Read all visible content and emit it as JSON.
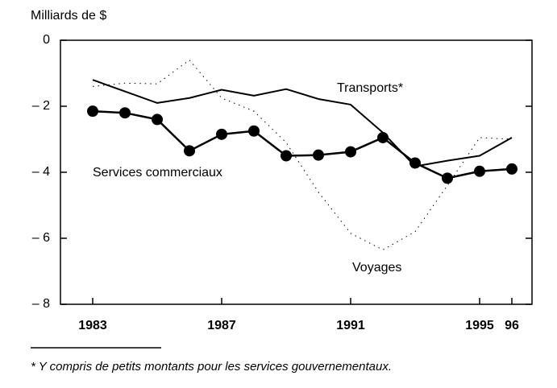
{
  "chart_data": {
    "type": "line",
    "y_axis_label": "Milliards de $",
    "footnote": "* Y compris de petits montants pour les services gouvernementaux.",
    "x": [
      1983,
      1984,
      1985,
      1986,
      1987,
      1988,
      1989,
      1990,
      1991,
      1992,
      1993,
      1994,
      1995,
      1996
    ],
    "xlim": [
      1982,
      1996.625
    ],
    "xticks": [
      1983,
      1987,
      1991,
      1995,
      {
        "value": 1996,
        "label": "96"
      }
    ],
    "ylim": [
      -8,
      0
    ],
    "yticks": [
      0,
      {
        "value": -2,
        "label": "– 2"
      },
      {
        "value": -4,
        "label": "– 4"
      },
      {
        "value": -6,
        "label": "– 6"
      },
      {
        "value": -8,
        "label": "– 8"
      }
    ],
    "series": [
      {
        "name": "Transports*",
        "color": "#000000",
        "style": "solid",
        "values": [
          -1.2,
          -1.55,
          -1.9,
          -1.75,
          -1.5,
          -1.68,
          -1.48,
          -1.78,
          -1.95,
          -2.8,
          -3.82,
          -3.65,
          -3.5,
          -2.95
        ]
      },
      {
        "name": "Services commerciaux",
        "color": "#000000",
        "style": "markers",
        "values": [
          -2.15,
          -2.2,
          -2.4,
          -3.35,
          -2.85,
          -2.75,
          -3.5,
          -3.48,
          -3.38,
          -2.95,
          -3.72,
          -4.18,
          -3.97,
          -3.9
        ]
      },
      {
        "name": "Voyages",
        "color": "#000000",
        "style": "dotted",
        "values": [
          -1.4,
          -1.3,
          -1.32,
          -0.6,
          -1.75,
          -2.15,
          -3.1,
          -4.6,
          -5.85,
          -6.35,
          -5.8,
          -4.4,
          -2.95,
          -3.0
        ]
      }
    ]
  }
}
